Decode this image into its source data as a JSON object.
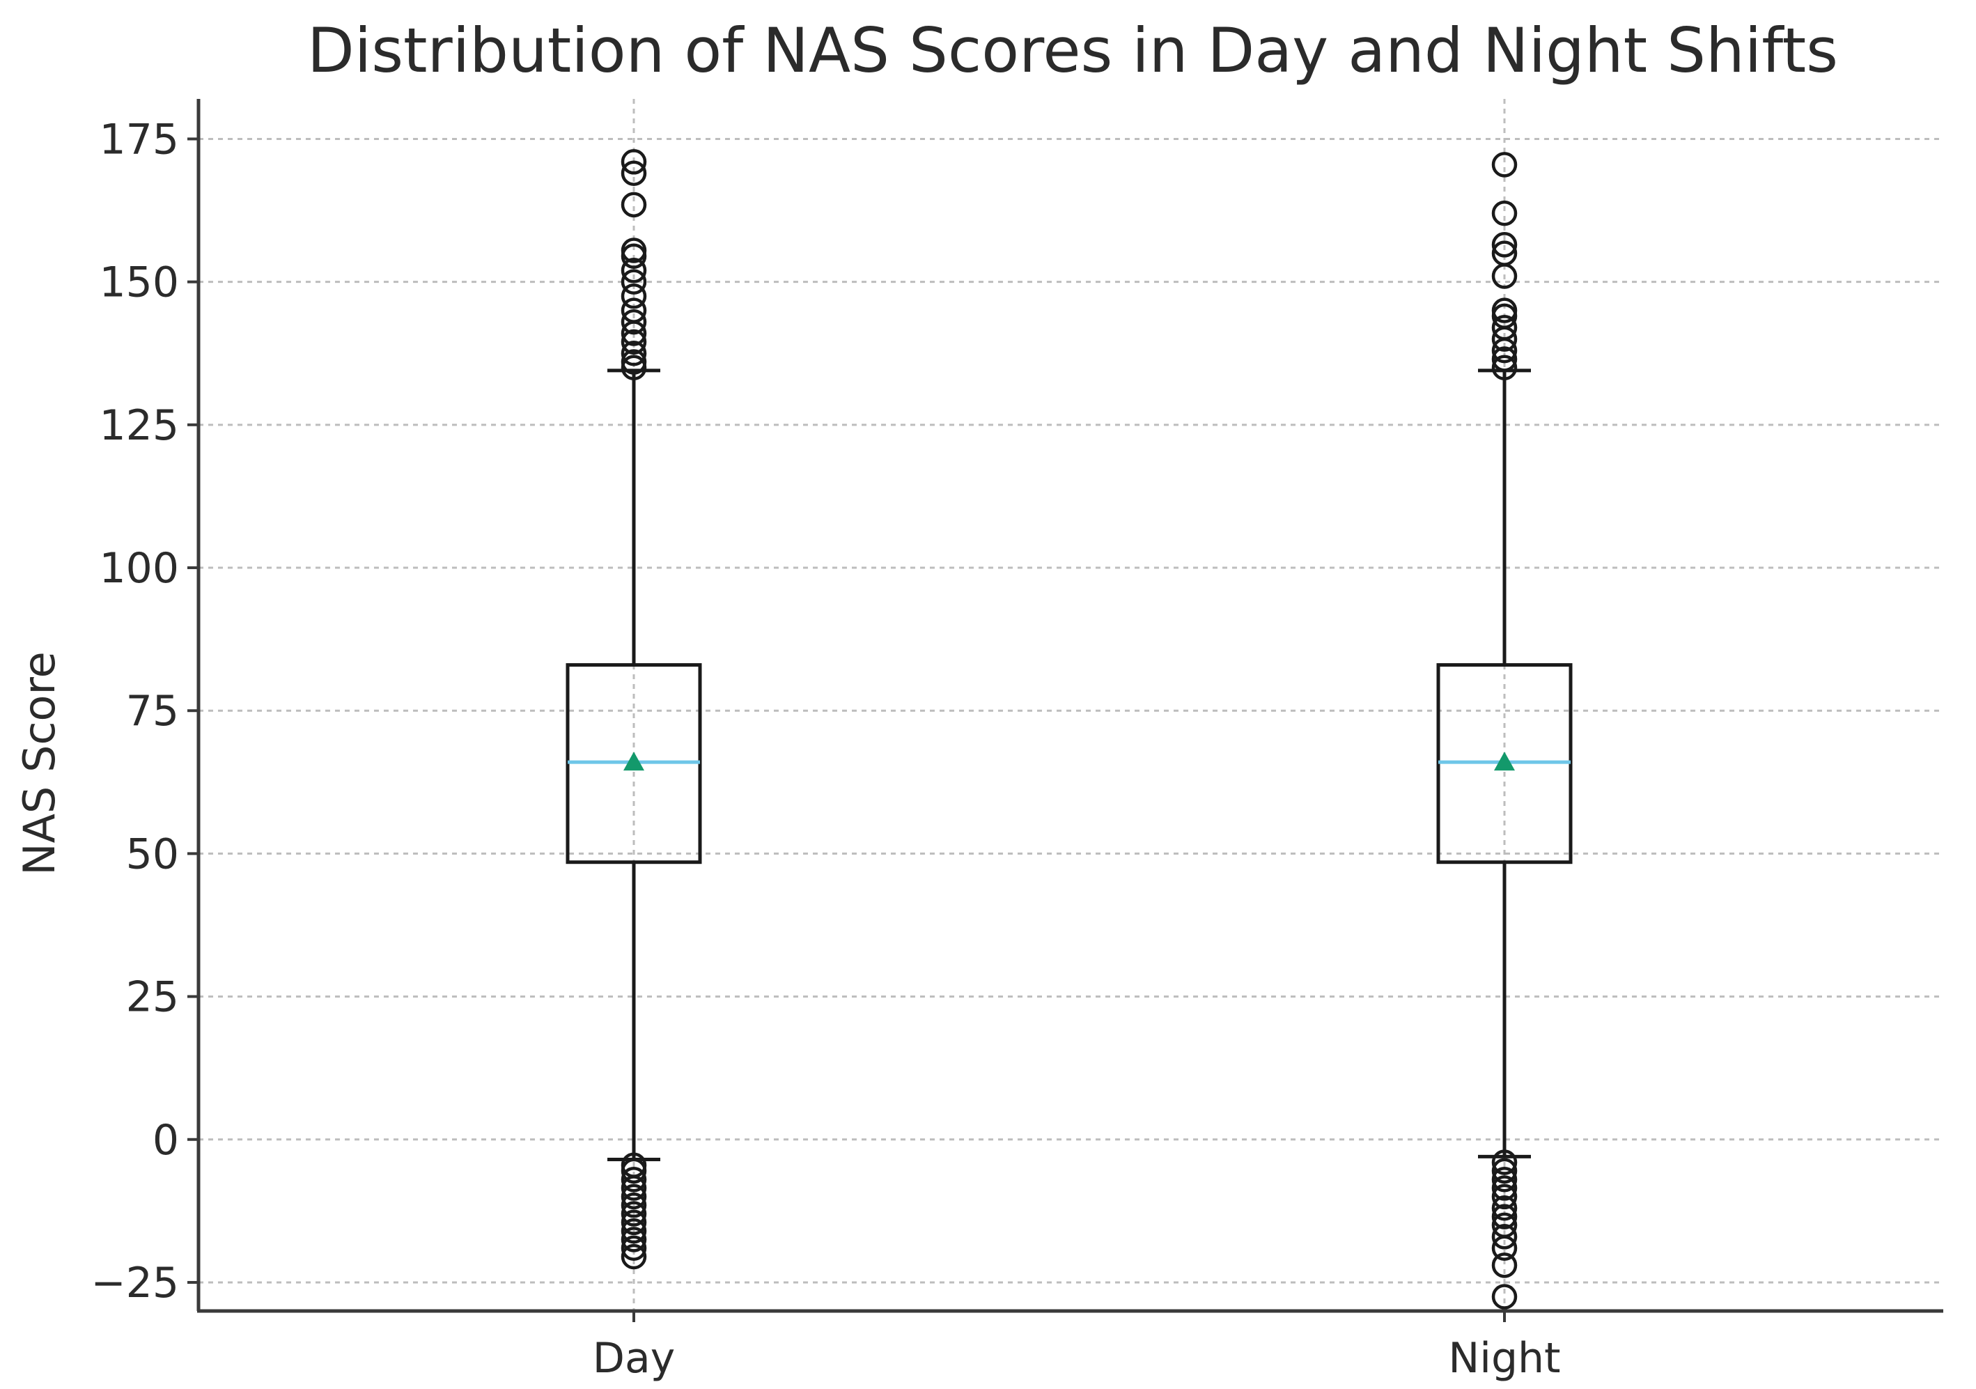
{
  "chart_data": {
    "type": "box",
    "title": "Distribution of NAS Scores in Day and Night Shifts",
    "xlabel": "",
    "ylabel": "NAS Score",
    "ylim": [
      -30,
      182
    ],
    "yticks": [
      -25,
      0,
      25,
      50,
      75,
      100,
      125,
      150,
      175
    ],
    "ytick_labels": [
      "−25",
      "0",
      "25",
      "50",
      "75",
      "100",
      "125",
      "150",
      "175"
    ],
    "grid": true,
    "categories": [
      "Day",
      "Night"
    ],
    "series": [
      {
        "name": "Day",
        "whisker_low": -3.5,
        "q1": 48.5,
        "median": 66,
        "mean": 66,
        "q3": 83,
        "whisker_high": 134.5,
        "outliers": [
          171,
          169,
          163.5,
          155.5,
          154.5,
          152,
          150,
          147.5,
          145,
          143,
          141,
          139.5,
          137.5,
          136,
          135,
          -4.5,
          -5.5,
          -7,
          -8.5,
          -10,
          -11.5,
          -13,
          -14.5,
          -16,
          -17.5,
          -19,
          -20.5
        ]
      },
      {
        "name": "Night",
        "whisker_low": -3,
        "q1": 48.5,
        "median": 66,
        "mean": 66,
        "q3": 83,
        "whisker_high": 134.5,
        "outliers": [
          170.5,
          162,
          156.5,
          155,
          151,
          145,
          144,
          142,
          140,
          138,
          136.5,
          135,
          -4,
          -5.5,
          -7,
          -8.5,
          -10,
          -12,
          -13.5,
          -15,
          -17,
          -19,
          -22,
          -27.5
        ]
      }
    ],
    "colors": {
      "median": "#6ec6e8",
      "mean": "#13996b",
      "box": "#1a1a1a",
      "grid": "#bdbdbd"
    }
  }
}
